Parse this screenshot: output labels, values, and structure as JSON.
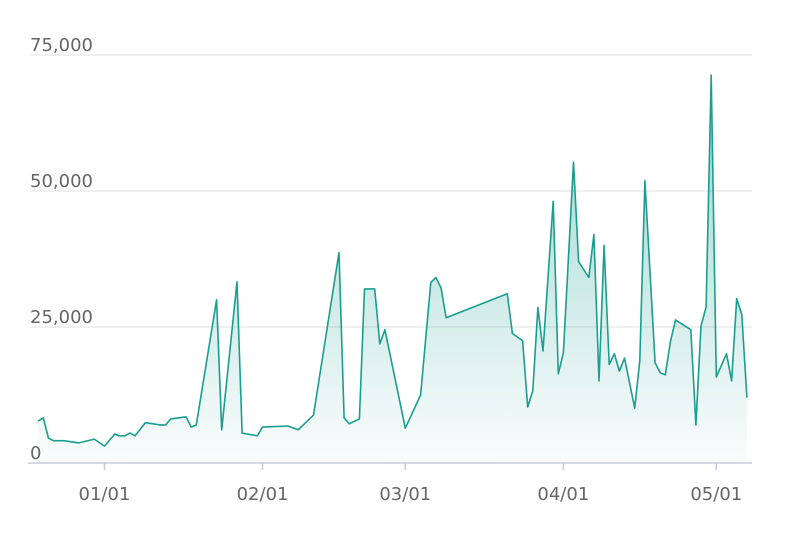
{
  "chart_data": {
    "type": "area",
    "x": [
      "12/19",
      "12/20",
      "12/21",
      "12/22",
      "12/24",
      "12/27",
      "12/30",
      "01/01",
      "01/03",
      "01/04",
      "01/05",
      "01/06",
      "01/07",
      "01/09",
      "01/12",
      "01/13",
      "01/14",
      "01/17",
      "01/18",
      "01/19",
      "01/23",
      "01/24",
      "01/27",
      "01/28",
      "01/31",
      "02/01",
      "02/06",
      "02/08",
      "02/11",
      "02/16",
      "02/17",
      "02/18",
      "02/20",
      "02/21",
      "02/23",
      "02/24",
      "02/25",
      "03/01",
      "03/04",
      "03/06",
      "03/07",
      "03/08",
      "03/09",
      "03/21",
      "03/22",
      "03/24",
      "03/25",
      "03/26",
      "03/27",
      "03/28",
      "03/30",
      "03/31",
      "04/01",
      "04/03",
      "04/04",
      "04/06",
      "04/07",
      "04/08",
      "04/09",
      "04/10",
      "04/11",
      "04/12",
      "04/13",
      "04/15",
      "04/16",
      "04/17",
      "04/19",
      "04/20",
      "04/21",
      "04/22",
      "04/23",
      "04/26",
      "04/27",
      "04/28",
      "04/29",
      "04/30",
      "05/01",
      "05/03",
      "05/04",
      "05/05",
      "05/06",
      "05/07"
    ],
    "values": [
      7700,
      8300,
      4600,
      4100,
      4100,
      3700,
      4400,
      3100,
      5300,
      5000,
      5000,
      5500,
      5000,
      7400,
      7000,
      7000,
      8100,
      8500,
      6600,
      7000,
      30000,
      6100,
      33300,
      5500,
      5000,
      6600,
      6800,
      6100,
      8800,
      38700,
      8300,
      7200,
      8100,
      32000,
      32000,
      21900,
      24500,
      6400,
      12500,
      33200,
      34100,
      32200,
      26700,
      31100,
      23800,
      22500,
      10300,
      13300,
      28600,
      20600,
      48100,
      16400,
      20300,
      55300,
      37000,
      34100,
      42000,
      15100,
      40000,
      18100,
      20100,
      16900,
      19300,
      10100,
      18800,
      51900,
      18400,
      16600,
      16200,
      22300,
      26300,
      24500,
      7000,
      25200,
      28700,
      71300,
      15800,
      20100,
      15100,
      30200,
      27300,
      12000
    ],
    "color": "#1a9e8f",
    "xlim": [
      "12/17",
      "05/08"
    ],
    "xticks": [
      "01/01",
      "02/01",
      "03/01",
      "04/01",
      "05/01"
    ],
    "ylim": [
      0,
      75000
    ],
    "yticks": [
      0,
      {
        "value": 25000,
        "label": "25,000"
      },
      {
        "value": 50000,
        "label": "50,000"
      },
      {
        "value": 75000,
        "label": "75,000"
      }
    ],
    "grid": true
  }
}
